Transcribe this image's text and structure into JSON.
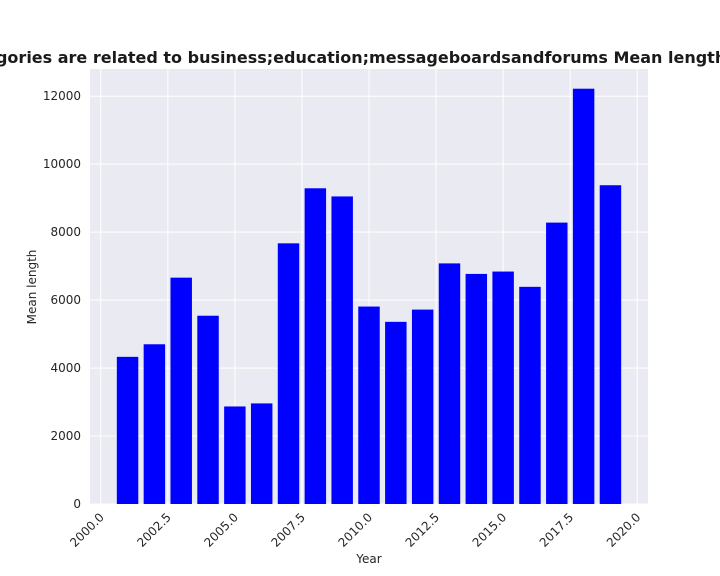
{
  "chart_data": {
    "type": "bar",
    "title": "Sites whose categories are related to business;education;messageboardsandforums Mean length in privacy policies",
    "xlabel": "Year",
    "ylabel": "Mean length",
    "x": [
      2001,
      2002,
      2003,
      2004,
      2005,
      2006,
      2007,
      2008,
      2009,
      2010,
      2011,
      2012,
      2013,
      2014,
      2015,
      2016,
      2017,
      2018,
      2019
    ],
    "values": [
      4330,
      4700,
      6660,
      5540,
      2870,
      2960,
      7670,
      9290,
      9050,
      5810,
      5360,
      5720,
      7080,
      6770,
      6840,
      6390,
      8280,
      12220,
      9380
    ],
    "xlim": [
      1999.6,
      2020.4
    ],
    "ylim": [
      0,
      12800
    ],
    "xticks": [
      2000.0,
      2002.5,
      2005.0,
      2007.5,
      2010.0,
      2012.5,
      2015.0,
      2017.5,
      2020.0
    ],
    "xtick_labels": [
      "2000.0",
      "2002.5",
      "2005.0",
      "2007.5",
      "2010.0",
      "2012.5",
      "2015.0",
      "2017.5",
      "2020.0"
    ],
    "yticks": [
      0,
      2000,
      4000,
      6000,
      8000,
      10000,
      12000
    ],
    "ytick_labels": [
      "0",
      "2000",
      "4000",
      "6000",
      "8000",
      "10000",
      "12000"
    ],
    "grid": true,
    "colors": {
      "bar": "#0000ff",
      "plot_background": "#eaeaf2",
      "grid": "#ffffff"
    }
  }
}
